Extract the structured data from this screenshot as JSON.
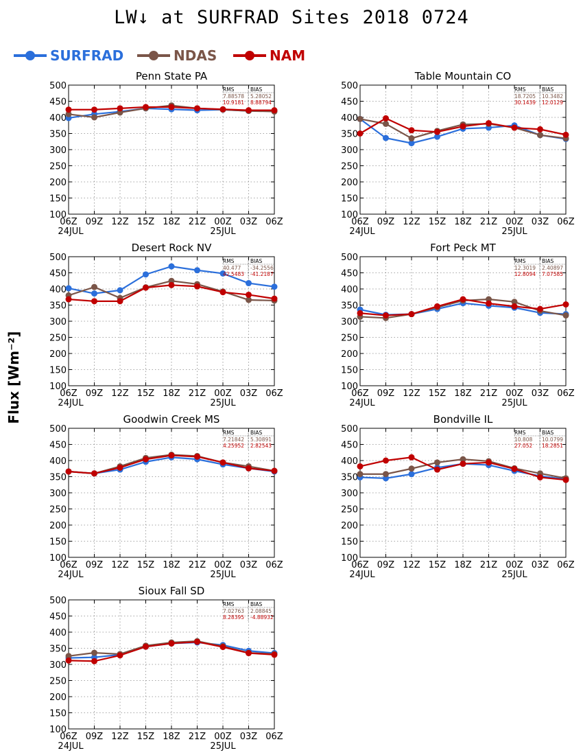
{
  "header": {
    "title": "LW↓ at SURFRAD Sites   2018 0724",
    "ylabel": "Flux [Wm⁻²]"
  },
  "legend": [
    {
      "name": "SURFRAD",
      "color": "#2b6fdb"
    },
    {
      "name": "NDAS",
      "color": "#7a5548"
    },
    {
      "name": "NAM",
      "color": "#c00000"
    }
  ],
  "chart_data": [
    {
      "type": "line",
      "title": "Penn State PA",
      "categories": [
        "06Z",
        "09Z",
        "12Z",
        "15Z",
        "18Z",
        "21Z",
        "00Z",
        "03Z",
        "06Z"
      ],
      "date_labels": [
        "24JUL",
        "",
        "",
        "",
        "",
        "",
        "25JUL",
        "",
        ""
      ],
      "ylim": [
        100,
        500
      ],
      "yticks": [
        100,
        150,
        200,
        250,
        300,
        350,
        400,
        450,
        500
      ],
      "grid": true,
      "stats": {
        "header": [
          "RMS",
          "BIAS"
        ],
        "rows": [
          [
            "7.88578",
            "5.28052"
          ],
          [
            "10.9181",
            "8.88794"
          ]
        ]
      },
      "series": [
        {
          "name": "SURFRAD",
          "values": [
            398,
            410,
            418,
            428,
            425,
            422,
            424,
            420,
            420
          ]
        },
        {
          "name": "NDAS",
          "values": [
            410,
            400,
            415,
            428,
            437,
            428,
            424,
            420,
            418
          ]
        },
        {
          "name": "NAM",
          "values": [
            424,
            424,
            428,
            432,
            432,
            428,
            425,
            422,
            422
          ]
        }
      ]
    },
    {
      "type": "line",
      "title": "Table Mountain CO",
      "categories": [
        "06Z",
        "09Z",
        "12Z",
        "15Z",
        "18Z",
        "21Z",
        "00Z",
        "03Z",
        "06Z"
      ],
      "date_labels": [
        "24JUL",
        "",
        "",
        "",
        "",
        "",
        "25JUL",
        "",
        ""
      ],
      "ylim": [
        100,
        500
      ],
      "yticks": [
        100,
        150,
        200,
        250,
        300,
        350,
        400,
        450,
        500
      ],
      "grid": true,
      "stats": {
        "header": [
          "RMS",
          "BIAS"
        ],
        "rows": [
          [
            "18.7205",
            "10.3482"
          ],
          [
            "30.1439",
            "12.0129"
          ]
        ]
      },
      "series": [
        {
          "name": "SURFRAD",
          "values": [
            395,
            336,
            320,
            340,
            365,
            368,
            375,
            345,
            333
          ]
        },
        {
          "name": "NDAS",
          "values": [
            395,
            380,
            335,
            358,
            378,
            380,
            368,
            345,
            335
          ]
        },
        {
          "name": "NAM",
          "values": [
            350,
            397,
            360,
            355,
            372,
            382,
            368,
            363,
            346
          ]
        }
      ]
    },
    {
      "type": "line",
      "title": "Desert Rock NV",
      "categories": [
        "06Z",
        "09Z",
        "12Z",
        "15Z",
        "18Z",
        "21Z",
        "00Z",
        "03Z",
        "06Z"
      ],
      "date_labels": [
        "24JUL",
        "",
        "",
        "",
        "",
        "",
        "25JUL",
        "",
        ""
      ],
      "ylim": [
        100,
        500
      ],
      "yticks": [
        100,
        150,
        200,
        250,
        300,
        350,
        400,
        450,
        500
      ],
      "grid": true,
      "stats": {
        "header": [
          "RMS",
          "BIAS"
        ],
        "rows": [
          [
            "40.477",
            "-34.2556"
          ],
          [
            "42.5483",
            "-41.2187"
          ]
        ]
      },
      "series": [
        {
          "name": "SURFRAD",
          "values": [
            402,
            386,
            396,
            445,
            470,
            458,
            448,
            418,
            407
          ]
        },
        {
          "name": "NDAS",
          "values": [
            380,
            406,
            372,
            405,
            425,
            415,
            392,
            366,
            364
          ]
        },
        {
          "name": "NAM",
          "values": [
            368,
            362,
            362,
            404,
            412,
            408,
            390,
            382,
            370
          ]
        }
      ]
    },
    {
      "type": "line",
      "title": "Fort Peck MT",
      "categories": [
        "06Z",
        "09Z",
        "12Z",
        "15Z",
        "18Z",
        "21Z",
        "00Z",
        "03Z",
        "06Z"
      ],
      "date_labels": [
        "24JUL",
        "",
        "",
        "",
        "",
        "",
        "25JUL",
        "",
        ""
      ],
      "ylim": [
        100,
        500
      ],
      "yticks": [
        100,
        150,
        200,
        250,
        300,
        350,
        400,
        450,
        500
      ],
      "grid": true,
      "stats": {
        "header": [
          "RMS",
          "BIAS"
        ],
        "rows": [
          [
            "12.3019",
            "2.40897"
          ],
          [
            "12.8094",
            "7.07585"
          ]
        ]
      },
      "series": [
        {
          "name": "SURFRAD",
          "values": [
            336,
            320,
            322,
            338,
            356,
            348,
            342,
            326,
            322
          ]
        },
        {
          "name": "NDAS",
          "values": [
            314,
            310,
            322,
            343,
            364,
            368,
            360,
            332,
            318
          ]
        },
        {
          "name": "NAM",
          "values": [
            325,
            318,
            322,
            346,
            368,
            355,
            346,
            338,
            352
          ]
        }
      ]
    },
    {
      "type": "line",
      "title": "Goodwin Creek MS",
      "categories": [
        "06Z",
        "09Z",
        "12Z",
        "15Z",
        "18Z",
        "21Z",
        "00Z",
        "03Z",
        "06Z"
      ],
      "date_labels": [
        "24JUL",
        "",
        "",
        "",
        "",
        "",
        "25JUL",
        "",
        ""
      ],
      "ylim": [
        100,
        500
      ],
      "yticks": [
        100,
        150,
        200,
        250,
        300,
        350,
        400,
        450,
        500
      ],
      "grid": true,
      "stats": {
        "header": [
          "RMS",
          "BIAS"
        ],
        "rows": [
          [
            "7.21842",
            "5.30891"
          ],
          [
            "4.25952",
            "2.82543"
          ]
        ]
      },
      "series": [
        {
          "name": "SURFRAD",
          "values": [
            366,
            360,
            372,
            396,
            410,
            404,
            388,
            376,
            366
          ]
        },
        {
          "name": "NDAS",
          "values": [
            366,
            360,
            382,
            408,
            418,
            414,
            394,
            382,
            368
          ]
        },
        {
          "name": "NAM",
          "values": [
            366,
            360,
            378,
            404,
            416,
            412,
            394,
            376,
            368
          ]
        }
      ]
    },
    {
      "type": "line",
      "title": "Bondville IL",
      "categories": [
        "06Z",
        "09Z",
        "12Z",
        "15Z",
        "18Z",
        "21Z",
        "00Z",
        "03Z",
        "06Z"
      ],
      "date_labels": [
        "24JUL",
        "",
        "",
        "",
        "",
        "",
        "25JUL",
        "",
        ""
      ],
      "ylim": [
        100,
        500
      ],
      "yticks": [
        100,
        150,
        200,
        250,
        300,
        350,
        400,
        450,
        500
      ],
      "grid": true,
      "stats": {
        "header": [
          "RMS",
          "BIAS"
        ],
        "rows": [
          [
            "10.808",
            "10.0799"
          ],
          [
            "27.052",
            "18.2851"
          ]
        ]
      },
      "series": [
        {
          "name": "SURFRAD",
          "values": [
            348,
            345,
            358,
            378,
            390,
            386,
            368,
            352,
            342
          ]
        },
        {
          "name": "NDAS",
          "values": [
            358,
            358,
            375,
            394,
            404,
            398,
            376,
            360,
            345
          ]
        },
        {
          "name": "NAM",
          "values": [
            382,
            400,
            410,
            372,
            390,
            394,
            374,
            348,
            340
          ]
        }
      ]
    },
    {
      "type": "line",
      "title": "Sioux Fall SD",
      "categories": [
        "06Z",
        "09Z",
        "12Z",
        "15Z",
        "18Z",
        "21Z",
        "00Z",
        "03Z",
        "06Z"
      ],
      "date_labels": [
        "24JUL",
        "",
        "",
        "",
        "",
        "",
        "25JUL",
        "",
        ""
      ],
      "ylim": [
        100,
        500
      ],
      "yticks": [
        100,
        150,
        200,
        250,
        300,
        350,
        400,
        450,
        500
      ],
      "grid": true,
      "stats": {
        "header": [
          "RMS",
          "BIAS"
        ],
        "rows": [
          [
            "7.02763",
            "2.08845"
          ],
          [
            "8.28395",
            "-4.88932"
          ]
        ]
      },
      "series": [
        {
          "name": "SURFRAD",
          "values": [
            320,
            322,
            330,
            355,
            365,
            368,
            360,
            342,
            335
          ]
        },
        {
          "name": "NDAS",
          "values": [
            326,
            336,
            332,
            358,
            368,
            372,
            356,
            336,
            332
          ]
        },
        {
          "name": "NAM",
          "values": [
            312,
            310,
            328,
            355,
            365,
            370,
            354,
            335,
            330
          ]
        }
      ]
    }
  ]
}
